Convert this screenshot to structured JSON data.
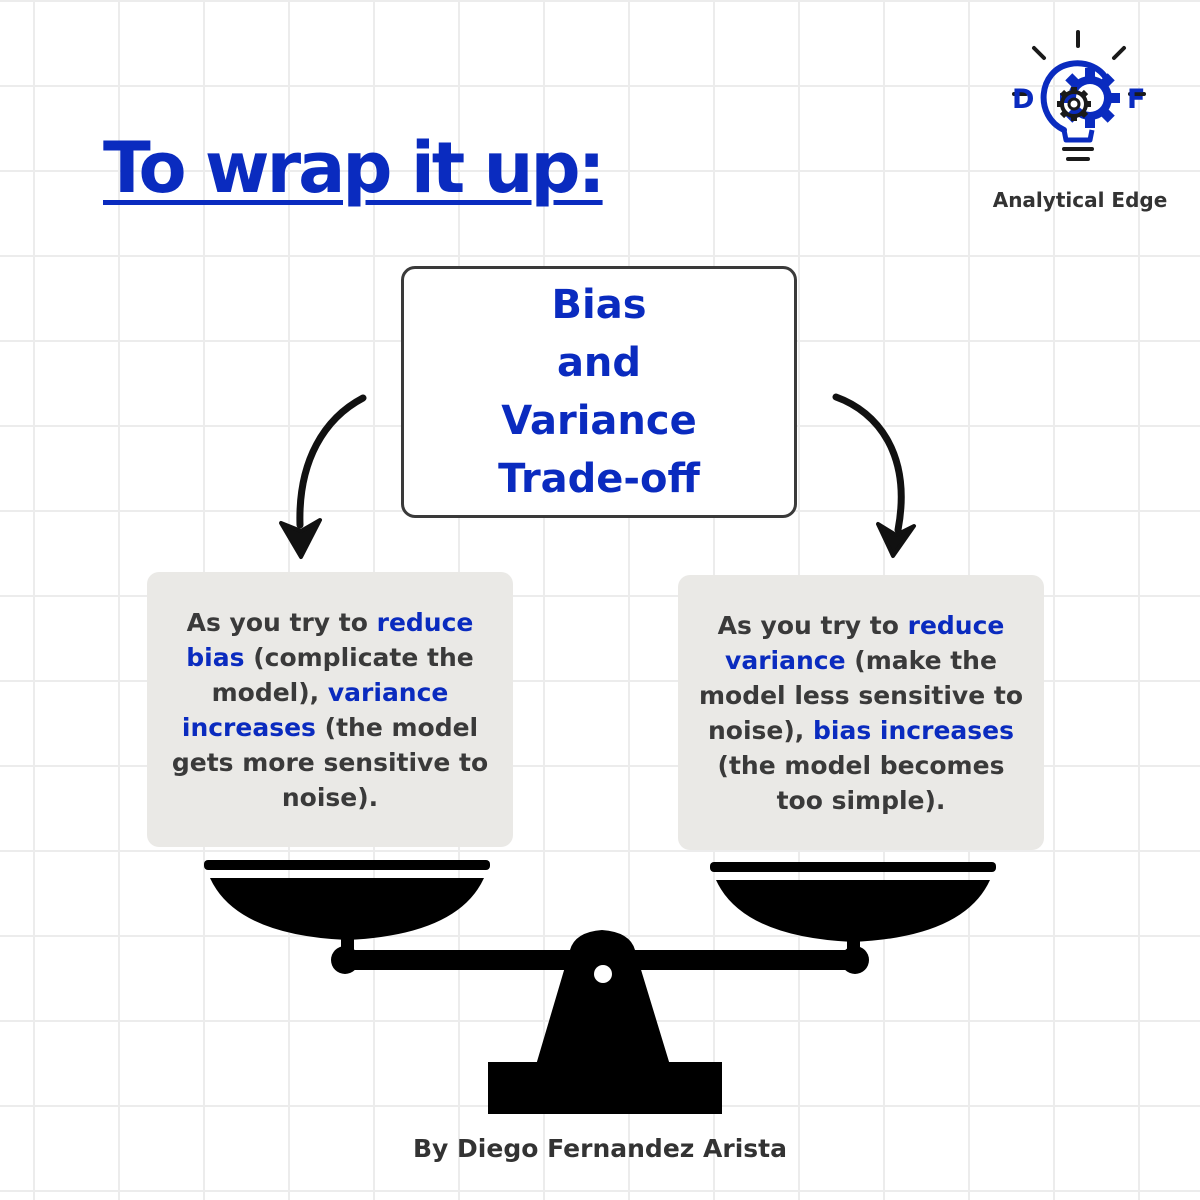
{
  "title": "To wrap it up:",
  "logo": {
    "letter_left": "D",
    "letter_right": "F",
    "name": "Analytical Edge"
  },
  "center_box": {
    "lines": [
      "Bias",
      "and",
      "Variance",
      "Trade-off"
    ]
  },
  "left_card": {
    "segments": [
      {
        "text": "As you try to ",
        "highlight": false
      },
      {
        "text": "reduce bias",
        "highlight": true
      },
      {
        "text": " (complicate the model), ",
        "highlight": false
      },
      {
        "text": "variance increases",
        "highlight": true
      },
      {
        "text": " (the model gets more sensitive to noise).",
        "highlight": false
      }
    ]
  },
  "right_card": {
    "segments": [
      {
        "text": "As you try to ",
        "highlight": false
      },
      {
        "text": "reduce variance",
        "highlight": true
      },
      {
        "text": " (make the model less sensitive to noise), ",
        "highlight": false
      },
      {
        "text": "bias increases",
        "highlight": true
      },
      {
        "text": " (the model becomes too simple).",
        "highlight": false
      }
    ]
  },
  "author": "By Diego Fernandez Arista",
  "colors": {
    "accent_blue": "#0a2bbf",
    "text_dark": "#3a3a3a",
    "card_background": "#eae9e6",
    "scale_black": "#000000"
  },
  "icons": [
    "lightbulb-icon",
    "gear-icon",
    "curved-arrow-left-icon",
    "curved-arrow-right-icon",
    "balance-scale-icon"
  ]
}
